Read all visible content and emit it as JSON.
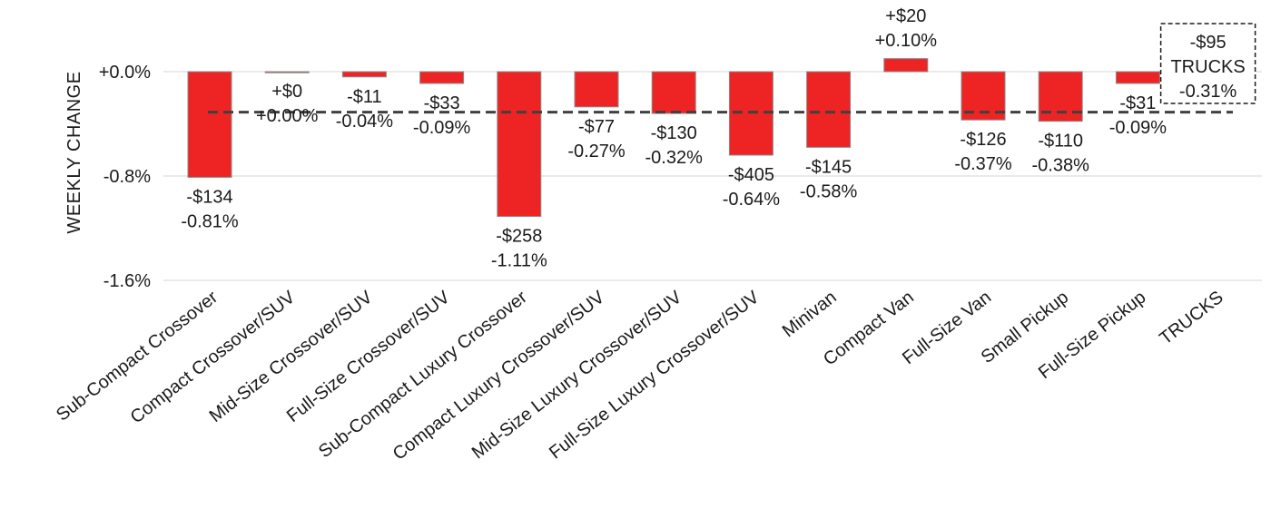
{
  "chart_data": {
    "type": "bar",
    "ylabel": "WEEKLY CHANGE",
    "xlabel": "",
    "title": "",
    "ylim": [
      -1.6,
      0.2
    ],
    "yticks": [
      0.0,
      -0.8,
      -1.6
    ],
    "ytick_labels": [
      "+0.0%",
      "-0.8%",
      "-1.6%"
    ],
    "grid": "horizontal",
    "legend": "none",
    "bar_color": "#ee2424",
    "reference_line": {
      "value": -0.31,
      "style": "dashed",
      "color": "#404040",
      "label_lines": [
        "-$95",
        "TRUCKS",
        "-0.31%"
      ]
    },
    "categories": [
      "Sub-Compact Crossover",
      "Compact Crossover/SUV",
      "Mid-Size Crossover/SUV",
      "Full-Size Crossover/SUV",
      "Sub-Compact Luxury Crossover",
      "Compact Luxury Crossover/SUV",
      "Mid-Size Luxury Crossover/SUV",
      "Full-Size Luxury Crossover/SUV",
      "Minivan",
      "Compact Van",
      "Full-Size Van",
      "Small Pickup",
      "Full-Size Pickup",
      "TRUCKS"
    ],
    "values": [
      -0.81,
      0.0,
      -0.04,
      -0.09,
      -1.11,
      -0.27,
      -0.32,
      -0.64,
      -0.58,
      0.1,
      -0.37,
      -0.38,
      -0.09,
      null
    ],
    "dollar_labels": [
      "-$134",
      "+$0",
      "-$11",
      "-$33",
      "-$258",
      "-$77",
      "-$130",
      "-$405",
      "-$145",
      "+$20",
      "-$126",
      "-$110",
      "-$31",
      ""
    ],
    "pct_labels": [
      "-0.81%",
      "+0.00%",
      "-0.04%",
      "-0.09%",
      "-1.11%",
      "-0.27%",
      "-0.32%",
      "-0.64%",
      "-0.58%",
      "+0.10%",
      "-0.37%",
      "-0.38%",
      "-0.09%",
      ""
    ]
  }
}
